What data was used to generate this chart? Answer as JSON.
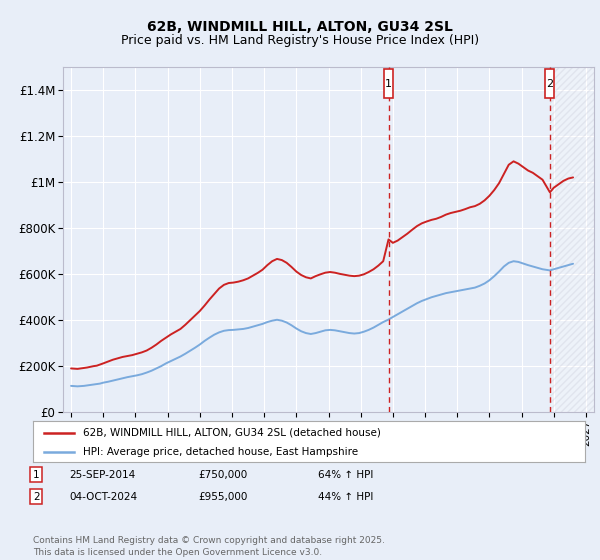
{
  "title": "62B, WINDMILL HILL, ALTON, GU34 2SL",
  "subtitle": "Price paid vs. HM Land Registry's House Price Index (HPI)",
  "title_fontsize": 10,
  "subtitle_fontsize": 9,
  "ylim": [
    0,
    1500000
  ],
  "yticks": [
    0,
    200000,
    400000,
    600000,
    800000,
    1000000,
    1200000,
    1400000
  ],
  "ytick_labels": [
    "£0",
    "£200K",
    "£400K",
    "£600K",
    "£800K",
    "£1M",
    "£1.2M",
    "£1.4M"
  ],
  "xlim_start": 1994.5,
  "xlim_end": 2027.5,
  "marker1_x": 2014.73,
  "marker2_x": 2024.76,
  "marker1_date": "25-SEP-2014",
  "marker1_price": "£750,000",
  "marker1_hpi": "64% ↑ HPI",
  "marker2_date": "04-OCT-2024",
  "marker2_price": "£955,000",
  "marker2_hpi": "44% ↑ HPI",
  "red_line_color": "#cc2222",
  "blue_line_color": "#7aaadd",
  "background_color": "#e8eef8",
  "plot_bg_color": "#e8eef8",
  "grid_color": "#ffffff",
  "legend_line1": "62B, WINDMILL HILL, ALTON, GU34 2SL (detached house)",
  "legend_line2": "HPI: Average price, detached house, East Hampshire",
  "footer": "Contains HM Land Registry data © Crown copyright and database right 2025.\nThis data is licensed under the Open Government Licence v3.0.",
  "red_x": [
    1995.0,
    1995.2,
    1995.4,
    1995.6,
    1995.8,
    1996.0,
    1996.2,
    1996.4,
    1996.6,
    1996.8,
    1997.0,
    1997.3,
    1997.6,
    1997.9,
    1998.2,
    1998.5,
    1998.8,
    1999.1,
    1999.4,
    1999.7,
    2000.0,
    2000.3,
    2000.6,
    2000.9,
    2001.2,
    2001.5,
    2001.8,
    2002.1,
    2002.4,
    2002.7,
    2003.0,
    2003.3,
    2003.6,
    2003.9,
    2004.2,
    2004.5,
    2004.8,
    2005.1,
    2005.4,
    2005.7,
    2006.0,
    2006.3,
    2006.6,
    2006.9,
    2007.2,
    2007.5,
    2007.8,
    2008.1,
    2008.4,
    2008.7,
    2009.0,
    2009.3,
    2009.6,
    2009.9,
    2010.2,
    2010.5,
    2010.8,
    2011.1,
    2011.4,
    2011.7,
    2012.0,
    2012.3,
    2012.6,
    2012.9,
    2013.2,
    2013.5,
    2013.8,
    2014.1,
    2014.4,
    2014.73,
    2015.0,
    2015.3,
    2015.6,
    2015.9,
    2016.2,
    2016.5,
    2016.8,
    2017.1,
    2017.4,
    2017.7,
    2018.0,
    2018.3,
    2018.6,
    2018.9,
    2019.2,
    2019.5,
    2019.8,
    2020.1,
    2020.4,
    2020.7,
    2021.0,
    2021.3,
    2021.6,
    2021.9,
    2022.2,
    2022.5,
    2022.8,
    2023.1,
    2023.4,
    2023.7,
    2024.0,
    2024.3,
    2024.76,
    2025.0,
    2025.3,
    2025.6,
    2025.9,
    2026.2
  ],
  "red_y": [
    188000,
    187000,
    186000,
    188000,
    190000,
    192000,
    195000,
    198000,
    200000,
    205000,
    210000,
    218000,
    226000,
    232000,
    238000,
    242000,
    246000,
    252000,
    258000,
    266000,
    278000,
    292000,
    308000,
    322000,
    336000,
    348000,
    360000,
    378000,
    398000,
    418000,
    438000,
    462000,
    488000,
    512000,
    536000,
    552000,
    560000,
    562000,
    566000,
    572000,
    580000,
    592000,
    604000,
    618000,
    638000,
    655000,
    665000,
    660000,
    648000,
    630000,
    610000,
    595000,
    585000,
    580000,
    590000,
    598000,
    605000,
    608000,
    605000,
    600000,
    596000,
    592000,
    590000,
    592000,
    598000,
    608000,
    620000,
    636000,
    655000,
    750000,
    735000,
    745000,
    760000,
    775000,
    792000,
    808000,
    820000,
    828000,
    835000,
    840000,
    848000,
    858000,
    865000,
    870000,
    875000,
    882000,
    890000,
    895000,
    905000,
    920000,
    940000,
    965000,
    995000,
    1035000,
    1075000,
    1090000,
    1080000,
    1065000,
    1050000,
    1040000,
    1025000,
    1010000,
    955000,
    975000,
    990000,
    1005000,
    1015000,
    1020000
  ],
  "blue_x": [
    1995.0,
    1995.2,
    1995.4,
    1995.6,
    1995.8,
    1996.0,
    1996.2,
    1996.4,
    1996.6,
    1996.8,
    1997.0,
    1997.3,
    1997.6,
    1997.9,
    1998.2,
    1998.5,
    1998.8,
    1999.1,
    1999.4,
    1999.7,
    2000.0,
    2000.3,
    2000.6,
    2000.9,
    2001.2,
    2001.5,
    2001.8,
    2002.1,
    2002.4,
    2002.7,
    2003.0,
    2003.3,
    2003.6,
    2003.9,
    2004.2,
    2004.5,
    2004.8,
    2005.1,
    2005.4,
    2005.7,
    2006.0,
    2006.3,
    2006.6,
    2006.9,
    2007.2,
    2007.5,
    2007.8,
    2008.1,
    2008.4,
    2008.7,
    2009.0,
    2009.3,
    2009.6,
    2009.9,
    2010.2,
    2010.5,
    2010.8,
    2011.1,
    2011.4,
    2011.7,
    2012.0,
    2012.3,
    2012.6,
    2012.9,
    2013.2,
    2013.5,
    2013.8,
    2014.1,
    2014.4,
    2014.7,
    2015.0,
    2015.3,
    2015.6,
    2015.9,
    2016.2,
    2016.5,
    2016.8,
    2017.1,
    2017.4,
    2017.7,
    2018.0,
    2018.3,
    2018.6,
    2018.9,
    2019.2,
    2019.5,
    2019.8,
    2020.1,
    2020.4,
    2020.7,
    2021.0,
    2021.3,
    2021.6,
    2021.9,
    2022.2,
    2022.5,
    2022.8,
    2023.1,
    2023.4,
    2023.7,
    2024.0,
    2024.3,
    2024.76,
    2025.0,
    2025.3,
    2025.6,
    2025.9,
    2026.2
  ],
  "blue_y": [
    112000,
    111000,
    110000,
    111000,
    112000,
    114000,
    116000,
    118000,
    120000,
    122000,
    126000,
    130000,
    135000,
    140000,
    145000,
    150000,
    154000,
    158000,
    163000,
    170000,
    178000,
    188000,
    198000,
    210000,
    220000,
    230000,
    240000,
    252000,
    265000,
    278000,
    292000,
    308000,
    322000,
    335000,
    345000,
    352000,
    355000,
    356000,
    358000,
    360000,
    364000,
    370000,
    376000,
    382000,
    390000,
    396000,
    400000,
    396000,
    388000,
    376000,
    362000,
    350000,
    342000,
    338000,
    342000,
    348000,
    354000,
    356000,
    354000,
    350000,
    346000,
    342000,
    340000,
    342000,
    348000,
    356000,
    366000,
    378000,
    390000,
    400000,
    412000,
    424000,
    436000,
    448000,
    460000,
    472000,
    482000,
    490000,
    498000,
    504000,
    510000,
    516000,
    520000,
    524000,
    528000,
    532000,
    536000,
    540000,
    548000,
    558000,
    572000,
    590000,
    610000,
    632000,
    648000,
    655000,
    652000,
    645000,
    638000,
    632000,
    626000,
    620000,
    615000,
    620000,
    626000,
    632000,
    638000,
    644000
  ]
}
